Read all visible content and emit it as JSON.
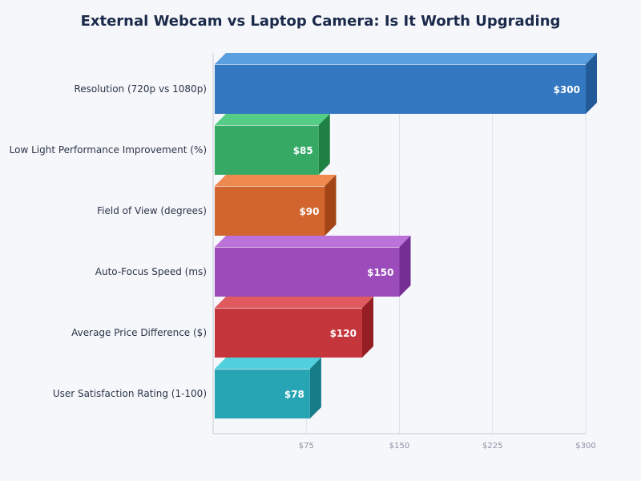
{
  "chart_data": {
    "type": "bar",
    "orientation": "horizontal",
    "title": "External Webcam vs Laptop Camera: Is It Worth Upgrading",
    "categories": [
      "Resolution (720p vs 1080p)",
      "Low Light Performance Improvement (%)",
      "Field of View (degrees)",
      "Auto-Focus Speed (ms)",
      "Average Price Difference ($)",
      "User Satisfaction Rating (1-100)"
    ],
    "values": [
      300,
      85,
      90,
      150,
      120,
      78
    ],
    "data_labels": [
      "$300",
      "$85",
      "$90",
      "$150",
      "$120",
      "$78"
    ],
    "colors": [
      {
        "front": "#3478c1",
        "top": "#5a9fe0",
        "side": "#235a98"
      },
      {
        "front": "#36a965",
        "top": "#56cd87",
        "side": "#1f8043"
      },
      {
        "front": "#d2652e",
        "top": "#ee8a50",
        "side": "#a34517"
      },
      {
        "front": "#9b4bba",
        "top": "#bd72da",
        "side": "#742e94"
      },
      {
        "front": "#c5363c",
        "top": "#e05a5f",
        "side": "#951e24"
      },
      {
        "front": "#27a5b4",
        "top": "#4fd0dc",
        "side": "#177c88"
      }
    ],
    "xticks": [
      75,
      150,
      225,
      300
    ],
    "xtick_labels": [
      "$75",
      "$150",
      "$225",
      "$300"
    ],
    "xlim": [
      0,
      300
    ],
    "grid": true,
    "xlabel": "",
    "ylabel": ""
  }
}
